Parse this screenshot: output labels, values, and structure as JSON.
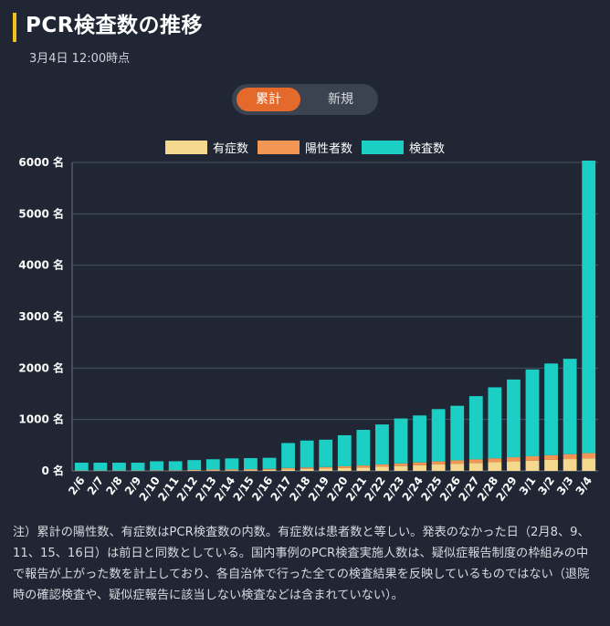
{
  "header": {
    "title": "PCR検査数の推移",
    "timestamp": "3月4日 12:00時点"
  },
  "toggle": {
    "options": [
      "累計",
      "新規"
    ],
    "selected": "累計"
  },
  "legend": [
    {
      "label": "有症数",
      "color": "#f3d88e"
    },
    {
      "label": "陽性者数",
      "color": "#f39553"
    },
    {
      "label": "検査数",
      "color": "#1ccfc4"
    }
  ],
  "chart_data": {
    "type": "bar",
    "stacked": true,
    "y_unit_suffix": " 名",
    "ylim": [
      0,
      6000
    ],
    "yticks": [
      0,
      1000,
      2000,
      3000,
      4000,
      5000,
      6000
    ],
    "categories": [
      "2/6",
      "2/7",
      "2/8",
      "2/9",
      "2/10",
      "2/11",
      "2/12",
      "2/13",
      "2/14",
      "2/15",
      "2/16",
      "2/17",
      "2/18",
      "2/19",
      "2/20",
      "2/21",
      "2/22",
      "2/23",
      "2/24",
      "2/25",
      "2/26",
      "2/27",
      "2/28",
      "2/29",
      "3/1",
      "3/2",
      "3/3",
      "3/4"
    ],
    "series": [
      {
        "name": "有症数",
        "color": "#f3d88e",
        "values": [
          3,
          3,
          3,
          3,
          5,
          5,
          10,
          12,
          14,
          16,
          20,
          30,
          40,
          45,
          55,
          65,
          80,
          95,
          110,
          125,
          140,
          155,
          170,
          185,
          200,
          215,
          230,
          245
        ]
      },
      {
        "name": "陽性者数",
        "color": "#f39553",
        "values": [
          5,
          5,
          5,
          5,
          8,
          8,
          10,
          14,
          15,
          18,
          20,
          25,
          27,
          30,
          35,
          40,
          45,
          50,
          55,
          60,
          65,
          70,
          75,
          80,
          85,
          90,
          95,
          100
        ]
      },
      {
        "name": "検査数",
        "color": "#1ccfc4",
        "values": [
          151,
          151,
          151,
          151,
          174,
          174,
          190,
          200,
          214,
          214,
          214,
          487,
          523,
          532,
          603,
          693,
          778,
          874,
          913,
          1017,
          1061,
          1229,
          1380,
          1512,
          1688,
          1784,
          1856,
          5690
        ]
      }
    ]
  },
  "note": "注）累計の陽性数、有症数はPCR検査数の内数。有症数は患者数と等しい。発表のなかった日（2月8、9、11、15、16日）は前日と同数としている。国内事例のPCR検査実施人数は、疑似症報告制度の枠組みの中で報告が上がった数を計上しており、各自治体で行った全ての検査結果を反映しているものではない（退院時の確認検査や、疑似症報告に該当しない検査などは含まれていない）。"
}
